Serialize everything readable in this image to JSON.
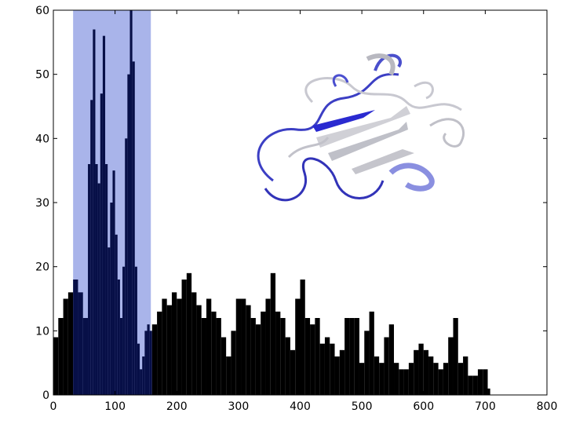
{
  "chart_data": {
    "type": "bar",
    "title": "",
    "xlabel": "",
    "ylabel": "",
    "xlim": [
      0,
      800
    ],
    "ylim": [
      0,
      60
    ],
    "xticks": [
      0,
      100,
      200,
      300,
      400,
      500,
      600,
      700,
      800
    ],
    "yticks": [
      0,
      10,
      20,
      30,
      40,
      50,
      60
    ],
    "grid": false,
    "bar_color": "#000000",
    "highlight_bar_color": "#070f47",
    "highlight_region": {
      "x_start": 32,
      "x_end": 158,
      "color": "#a9b4ea"
    },
    "inset_image": "protein-ribbon-structure",
    "series": [
      {
        "x": [
          0,
          8,
          16,
          24,
          32,
          40,
          48,
          56,
          60,
          64,
          68,
          72,
          76,
          80,
          84,
          88,
          92,
          96,
          100,
          104,
          108,
          112,
          116,
          120,
          124,
          128,
          132,
          136,
          140,
          144,
          148,
          152,
          156,
          160,
          168,
          176,
          184,
          192,
          200,
          208,
          216,
          224,
          232,
          240,
          248,
          256,
          264,
          272,
          280,
          288,
          296,
          304,
          312,
          320,
          328,
          336,
          344,
          352,
          360,
          368,
          376,
          384,
          392,
          400,
          408,
          416,
          424,
          432,
          440,
          448,
          456,
          464,
          472,
          480,
          488,
          496,
          504,
          512,
          520,
          528,
          536,
          544,
          552,
          560,
          568,
          576,
          584,
          592,
          600,
          608,
          616,
          624,
          632,
          640,
          648,
          656,
          664,
          672,
          680,
          688,
          696,
          704
        ],
        "values": [
          9,
          12,
          15,
          16,
          18,
          16,
          12,
          36,
          46,
          57,
          36,
          33,
          47,
          56,
          36,
          23,
          30,
          35,
          25,
          18,
          12,
          20,
          40,
          50,
          60,
          52,
          20,
          8,
          4,
          6,
          10,
          11,
          10,
          11,
          13,
          15,
          14,
          16,
          15,
          18,
          19,
          16,
          14,
          12,
          15,
          13,
          12,
          9,
          6,
          10,
          15,
          15,
          14,
          12,
          11,
          13,
          15,
          19,
          13,
          12,
          9,
          7,
          15,
          18,
          12,
          11,
          12,
          8,
          9,
          8,
          6,
          7,
          12,
          12,
          12,
          5,
          10,
          13,
          6,
          5,
          9,
          11,
          5,
          4,
          4,
          5,
          7,
          8,
          7,
          6,
          5,
          4,
          5,
          9,
          12,
          5,
          6,
          3,
          3,
          4,
          4,
          1
        ]
      }
    ]
  }
}
